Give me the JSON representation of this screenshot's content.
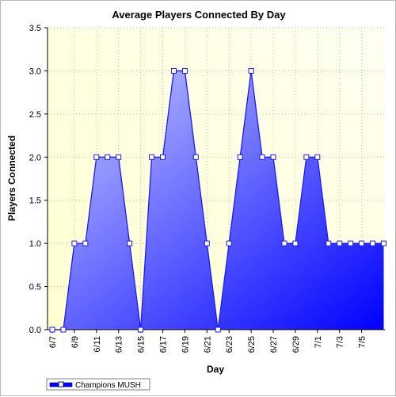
{
  "colors": {
    "plot_bg_top_right": "#fffff2",
    "plot_bg_bottom_left": "#ffffd0",
    "fill_light": "#c8ccff",
    "fill_dark": "#0000ff",
    "line": "#1a1aff",
    "marker_fill": "#ffffff",
    "gridline": "#c8c8a8"
  },
  "legend": {
    "label": "Champions MUSH"
  },
  "chart_data": {
    "type": "area",
    "title": "Average Players Connected By Day",
    "xlabel": "Day",
    "ylabel": "Players Connected",
    "ylim": [
      0,
      3.5
    ],
    "yticks": [
      "0.0",
      "0.5",
      "1.0",
      "1.5",
      "2.0",
      "2.5",
      "3.0",
      "3.5"
    ],
    "grid": true,
    "legend_position": "bottom-left",
    "x_tick_labels": [
      "6/7",
      "6/9",
      "6/11",
      "6/13",
      "6/15",
      "6/17",
      "6/19",
      "6/21",
      "6/23",
      "6/25",
      "6/27",
      "6/29",
      "7/1",
      "7/3",
      "7/5"
    ],
    "x": [
      "6/7",
      "6/8",
      "6/9",
      "6/10",
      "6/11",
      "6/12",
      "6/13",
      "6/14",
      "6/15",
      "6/16",
      "6/17",
      "6/18",
      "6/19",
      "6/20",
      "6/21",
      "6/22",
      "6/23",
      "6/24",
      "6/25",
      "6/26",
      "6/27",
      "6/28",
      "6/29",
      "6/30",
      "7/1",
      "7/2",
      "7/3",
      "7/4",
      "7/5",
      "7/6",
      "7/7"
    ],
    "series": [
      {
        "name": "Champions MUSH",
        "values": [
          0,
          0,
          1,
          1,
          2,
          2,
          2,
          1,
          0,
          2,
          2,
          3,
          3,
          2,
          1,
          0,
          1,
          2,
          3,
          2,
          2,
          1,
          1,
          2,
          2,
          1,
          1,
          1,
          1,
          1,
          1
        ]
      }
    ]
  }
}
